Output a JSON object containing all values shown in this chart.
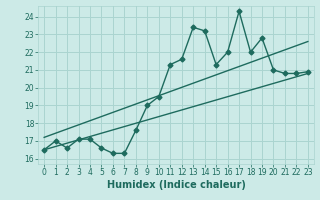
{
  "title": "",
  "xlabel": "Humidex (Indice chaleur)",
  "ylabel": "",
  "bg_color": "#cceae7",
  "grid_color": "#aad4d0",
  "line_color": "#1e6b5e",
  "x_data": [
    0,
    1,
    2,
    3,
    4,
    5,
    6,
    7,
    8,
    9,
    10,
    11,
    12,
    13,
    14,
    15,
    16,
    17,
    18,
    19,
    20,
    21,
    22,
    23
  ],
  "y_data": [
    16.5,
    17.0,
    16.6,
    17.1,
    17.1,
    16.6,
    16.3,
    16.3,
    17.6,
    19.0,
    19.5,
    21.3,
    21.6,
    23.4,
    23.2,
    21.3,
    22.0,
    24.3,
    22.0,
    22.8,
    21.0,
    20.8,
    20.8,
    20.9
  ],
  "trend1_x": [
    0,
    23
  ],
  "trend1_y": [
    16.5,
    20.8
  ],
  "trend2_x": [
    0,
    23
  ],
  "trend2_y": [
    17.2,
    22.6
  ],
  "xlim": [
    -0.5,
    23.5
  ],
  "ylim": [
    15.7,
    24.6
  ],
  "xticks": [
    0,
    1,
    2,
    3,
    4,
    5,
    6,
    7,
    8,
    9,
    10,
    11,
    12,
    13,
    14,
    15,
    16,
    17,
    18,
    19,
    20,
    21,
    22,
    23
  ],
  "yticks": [
    16,
    17,
    18,
    19,
    20,
    21,
    22,
    23,
    24
  ],
  "marker": "D",
  "markersize": 2.5,
  "linewidth": 1.0,
  "tick_fontsize": 5.5,
  "label_fontsize": 7.0
}
